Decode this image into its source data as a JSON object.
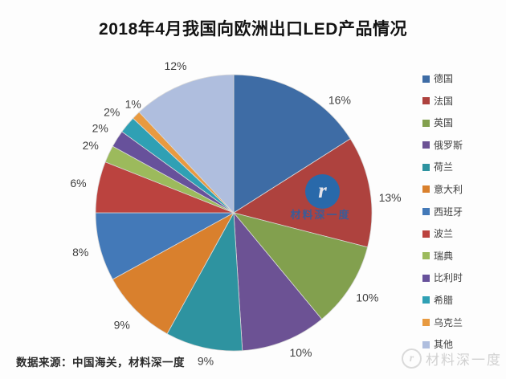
{
  "title": "2018年4月我国向欧洲出口LED产品情况",
  "source_note": "数据来源：中国海关，材料深一度",
  "watermarks": {
    "center_logo_glyph": "r",
    "center_text": "材料深一度",
    "corner_logo_glyph": "r",
    "corner_text": "材料深一度"
  },
  "colors": {
    "title_text": "#141414",
    "slice_label_text": "#3f3f3f",
    "legend_text": "#3f3f3f",
    "slice_stroke": "#d9d9d9",
    "watermark_blue": "#1e6db4",
    "watermark_gray": "#cfcfcf"
  },
  "chart_data": {
    "type": "pie",
    "title": "2018年4月我国向欧洲出口LED产品情况",
    "direction": "clockwise",
    "start_angle_deg": 0,
    "legend_position": "right",
    "unit": "%",
    "categories": [
      "德国",
      "法国",
      "英国",
      "俄罗斯",
      "荷兰",
      "意大利",
      "西班牙",
      "波兰",
      "瑞典",
      "比利时",
      "希腊",
      "乌克兰",
      "其他"
    ],
    "values": [
      16,
      13,
      10,
      10,
      9,
      9,
      8,
      6,
      2,
      2,
      2,
      1,
      12
    ],
    "labels": [
      "16%",
      "13%",
      "10%",
      "10%",
      "9%",
      "9%",
      "8%",
      "6%",
      "2%",
      "2%",
      "2%",
      "1%",
      "12%"
    ],
    "colors": [
      "#3e6ca5",
      "#ae423e",
      "#82a04e",
      "#6c5294",
      "#2e93a0",
      "#d9802d",
      "#4379b8",
      "#bb433f",
      "#9cba5c",
      "#67519b",
      "#2fa0b4",
      "#e89a40",
      "#afbede"
    ]
  }
}
